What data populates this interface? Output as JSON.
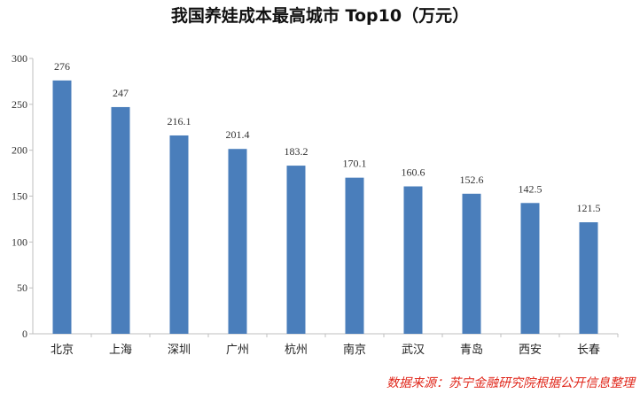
{
  "chart_data": {
    "type": "bar",
    "title": "我国养娃成本最高城市 Top10（万元）",
    "categories": [
      "北京",
      "上海",
      "深圳",
      "广州",
      "杭州",
      "南京",
      "武汉",
      "青岛",
      "西安",
      "长春"
    ],
    "values": [
      276,
      247,
      216.1,
      201.4,
      183.2,
      170.1,
      160.6,
      152.6,
      142.5,
      121.5
    ],
    "data_labels": [
      "276",
      "247",
      "216.1",
      "201.4",
      "183.2",
      "170.1",
      "160.6",
      "152.6",
      "142.5",
      "121.5"
    ],
    "ylim": [
      0,
      300
    ],
    "yticks": [
      0,
      50,
      100,
      150,
      200,
      250,
      300
    ],
    "grid": false,
    "bar_color": "#4a7ebb",
    "source": "数据来源：苏宁金融研究院根据公开信息整理"
  }
}
